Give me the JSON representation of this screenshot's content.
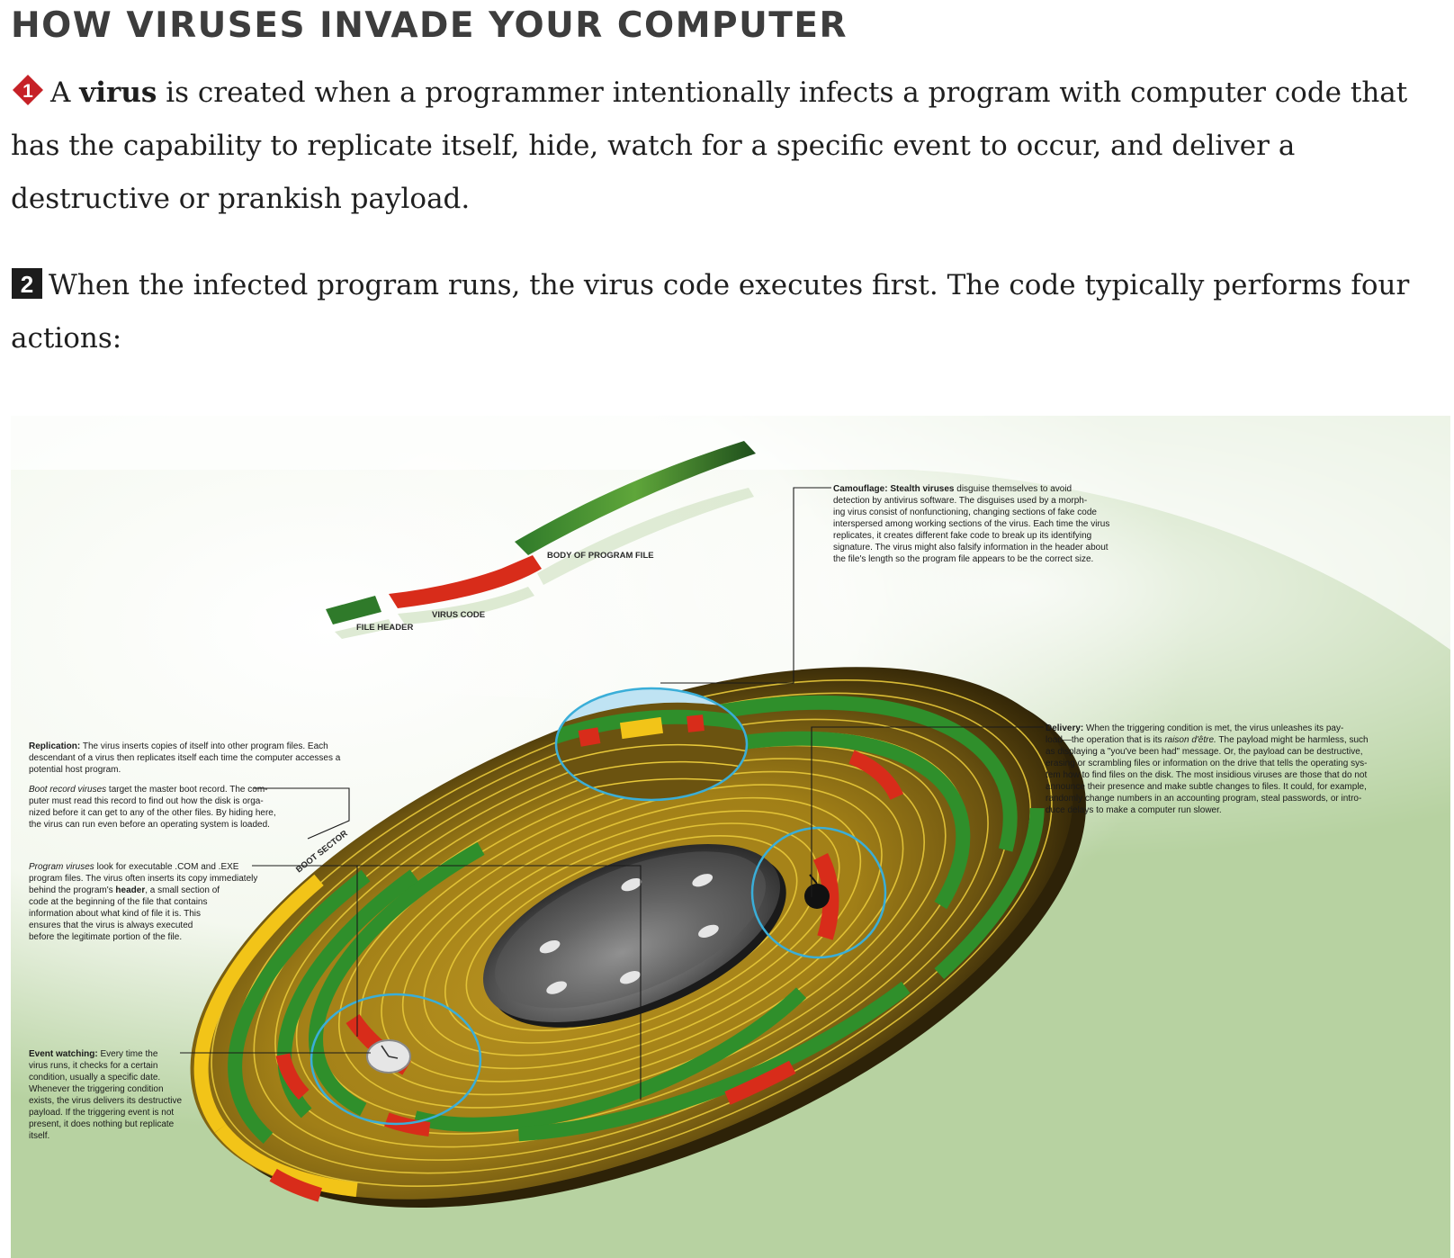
{
  "title": "HOW VIRUSES INVADE YOUR COMPUTER",
  "step1": {
    "number": "1",
    "lead": "A ",
    "bold": "virus",
    "rest": " is created when a programmer intentionally infects a program with computer code that has the capability to replicate itself, hide, watch for a specific event to occur, and deliver a destructive or prankish payload."
  },
  "step2": {
    "number": "2",
    "text": "When the infected program runs, the virus code executes first. The code typically performs four actions:"
  },
  "diagram": {
    "file_labels": {
      "body": "BODY OF PROGRAM FILE",
      "virus": "VIRUS CODE",
      "header": "FILE HEADER"
    },
    "boot_sector_label": "BOOT SECTOR",
    "camouflage": {
      "heading": "Camouflage: Stealth viruses",
      "lines": [
        " disguise themselves to avoid",
        "detection by antivirus software. The disguises used by a morph-",
        "ing virus consist of nonfunctioning, changing sections of fake code",
        "interspersed among working sections of the virus. Each time the virus",
        "replicates, it creates different fake code to break up its identifying",
        "signature. The virus might also falsify information in the header about",
        "the file's length so the program file appears to be the correct size."
      ]
    },
    "delivery": {
      "heading": "Delivery:",
      "line1": " When the triggering condition is met, the virus unleashes its pay-",
      "line2a": "load—the operation that is its ",
      "line2i": "raison d'être.",
      "line2b": " The payload might be harmless, such",
      "lines": [
        "as displaying a \"you've been had\" message. Or, the payload can be destructive,",
        "erasing or scrambling files or information on the drive that tells the operating sys-",
        "tem how to find files on the disk. The most insidious viruses are those that do not",
        "announce their presence and make subtle changes to files. It could, for example,",
        "randomly change numbers in an accounting program, steal passwords, or intro-",
        "duce delays to make a computer run slower."
      ]
    },
    "replication": {
      "heading": "Replication:",
      "line1": " The virus inserts copies of itself into other program files. Each",
      "lines": [
        "descendant of a virus then replicates itself each time the computer accesses a",
        "potential host program."
      ]
    },
    "boot_record": {
      "italic": "Boot record viruses",
      "line1": " target the master boot record. The com-",
      "lines": [
        "puter must read this record to find out how the disk is orga-",
        "nized before it can get to any of the other files. By hiding here,",
        "the virus can run even before an operating system is loaded."
      ]
    },
    "program_viruses": {
      "italic": "Program viruses",
      "line1": " look for executable .COM and .EXE",
      "line2": "program files. The virus often inserts its copy immediately",
      "line3a": "behind the program's ",
      "line3b": "header",
      "line3c": ", a small section of",
      "lines": [
        "code at the beginning of the file that contains",
        "information about what kind of file it is. This",
        "ensures that the virus is always executed",
        "before the legitimate portion of the file."
      ]
    },
    "event_watching": {
      "heading": "Event watching:",
      "line1": " Every time the",
      "lines": [
        "virus runs, it checks for a certain",
        "condition, usually a specific date.",
        "Whenever the triggering condition",
        "exists, the virus delivers its destructive",
        "payload. If the triggering event is not",
        "present, it does nothing but replicate",
        "itself."
      ]
    },
    "colors": {
      "disk": "#9c7c14",
      "disk_dark": "#2d2208",
      "track": "#eacb35",
      "green": "#2f8f2b",
      "virus": "#d82c1a",
      "boot": "#f2c418",
      "callout": "#3aaed8"
    }
  }
}
